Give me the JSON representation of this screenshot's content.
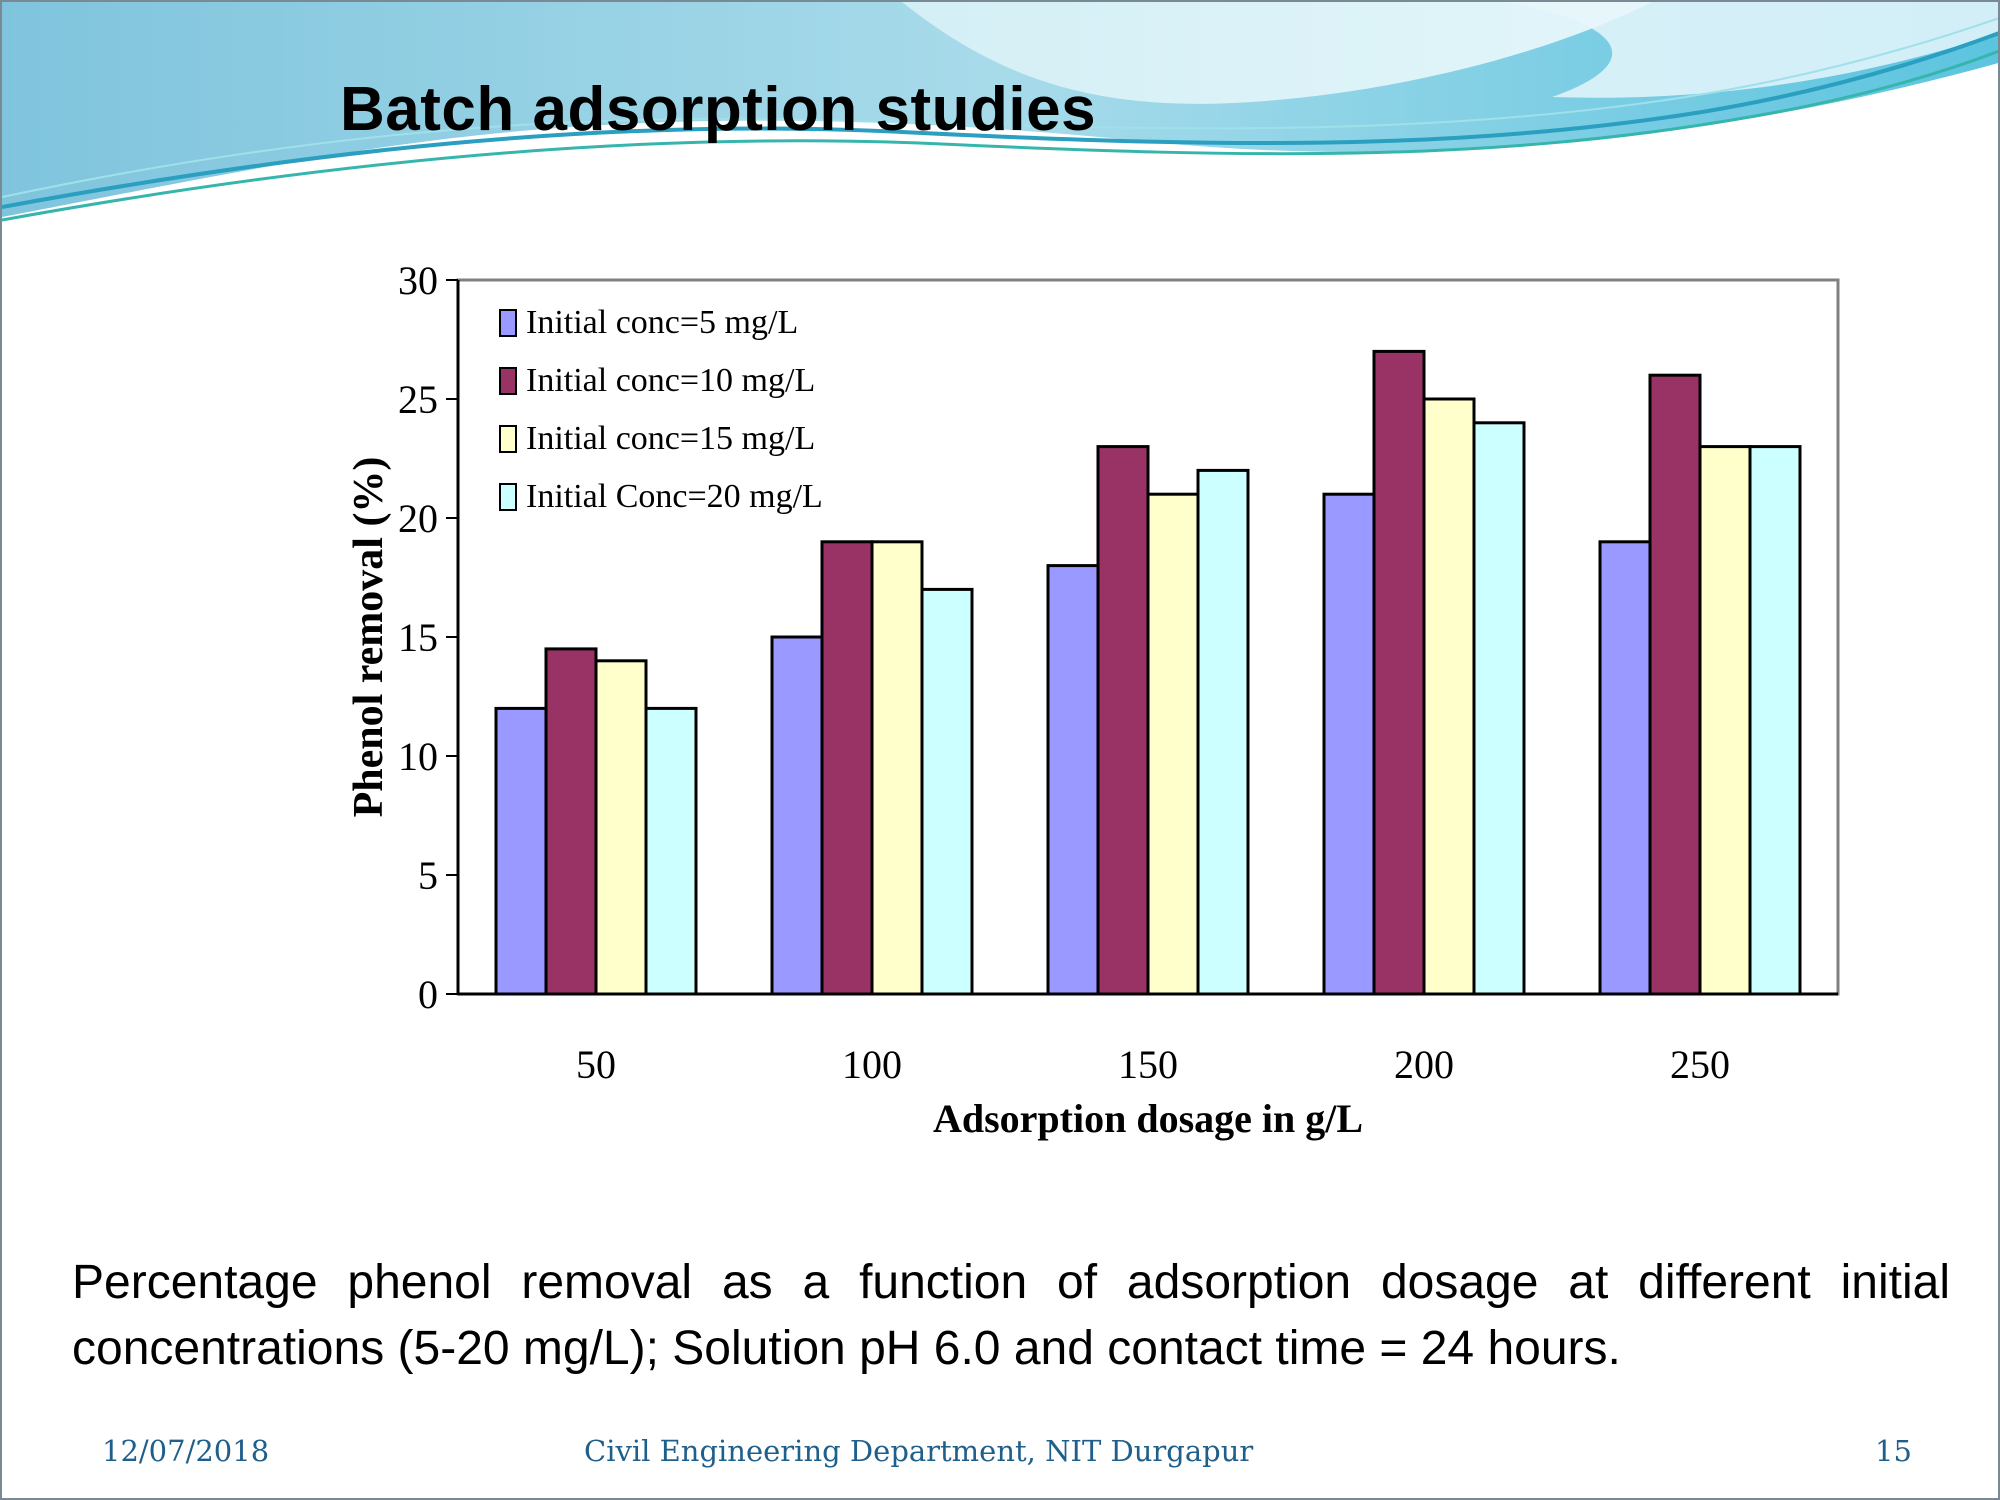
{
  "slide": {
    "title": "Batch adsorption studies",
    "caption": "Percentage phenol removal as a function of adsorption dosage at different initial concentrations (5-20 mg/L); Solution pH 6.0 and contact time = 24 hours.",
    "footer": {
      "date": "12/07/2018",
      "organization": "Civil Engineering Department, NIT Durgapur",
      "page_number": "15"
    },
    "theme_colors": {
      "wave_light": "#cdeef6",
      "wave_mid": "#7ccfe3",
      "wave_dark": "#2aa5c4",
      "footer_text": "#1f5f8b"
    }
  },
  "chart_data": {
    "type": "bar",
    "title": "",
    "xlabel": "Adsorption dosage in g/L",
    "ylabel": "Phenol removal (%)",
    "categories": [
      "50",
      "100",
      "150",
      "200",
      "250"
    ],
    "ylim": [
      0,
      30
    ],
    "yticks": [
      "0",
      "5",
      "10",
      "15",
      "20",
      "25",
      "30"
    ],
    "grid": false,
    "legend_position": "top-left",
    "series": [
      {
        "name": "Initial conc=5 mg/L",
        "color": "#9999ff",
        "values": [
          12,
          15,
          18,
          21,
          19
        ]
      },
      {
        "name": "Initial conc=10 mg/L",
        "color": "#993366",
        "values": [
          14.5,
          19,
          23,
          27,
          26
        ]
      },
      {
        "name": "Initial conc=15 mg/L",
        "color": "#ffffcc",
        "values": [
          14,
          19,
          21,
          25,
          23
        ]
      },
      {
        "name": "Initial Conc=20 mg/L",
        "color": "#ccffff",
        "values": [
          12,
          17,
          22,
          24,
          23
        ]
      }
    ]
  }
}
